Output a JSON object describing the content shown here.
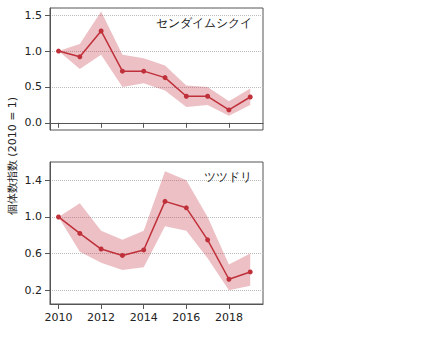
{
  "ylabel": "個体数指数 (2010 = 1)",
  "chart_data": [
    {
      "type": "line",
      "title": "センダイムシクイ",
      "x": [
        2010,
        2011,
        2012,
        2013,
        2014,
        2015,
        2016,
        2017,
        2018,
        2019
      ],
      "series": [
        {
          "color": "#c0303a",
          "marker": "circle",
          "values": [
            1.0,
            0.92,
            1.28,
            0.72,
            0.72,
            0.63,
            0.37,
            0.37,
            0.18,
            0.36
          ],
          "lower": [
            1.0,
            0.75,
            0.95,
            0.5,
            0.55,
            0.45,
            0.22,
            0.25,
            0.1,
            0.25
          ],
          "upper": [
            1.0,
            1.1,
            1.55,
            0.95,
            0.9,
            0.8,
            0.52,
            0.5,
            0.3,
            0.48
          ]
        }
      ],
      "xlim": [
        2009.6,
        2019.6
      ],
      "xticks": [
        2010,
        2012,
        2014,
        2016,
        2018
      ],
      "ylim": [
        -0.1,
        1.6
      ],
      "yticks": [
        {
          "value": 0,
          "label": "0.0"
        },
        0.5,
        {
          "value": 1,
          "label": "1.0"
        },
        1.5
      ],
      "grid": true,
      "tick_labels": "y"
    },
    {
      "type": "line",
      "title": "ツツドリ",
      "x": [
        2010,
        2011,
        2012,
        2013,
        2014,
        2015,
        2016,
        2017,
        2018,
        2019
      ],
      "series": [
        {
          "color": "#c0303a",
          "marker": "circle",
          "values": [
            1.0,
            0.82,
            0.65,
            0.58,
            0.64,
            1.17,
            1.1,
            0.75,
            0.32,
            0.4
          ],
          "lower": [
            1.0,
            0.62,
            0.5,
            0.42,
            0.45,
            0.9,
            0.85,
            0.55,
            0.2,
            0.25
          ],
          "upper": [
            1.0,
            1.15,
            0.85,
            0.75,
            0.85,
            1.5,
            1.4,
            1.0,
            0.48,
            0.6
          ]
        }
      ],
      "xlim": [
        2009.6,
        2019.6
      ],
      "xticks": [
        2010,
        2012,
        2014,
        2016,
        2018
      ],
      "ylim": [
        0.05,
        1.6
      ],
      "yticks": [
        0.2,
        0.6,
        {
          "value": 1,
          "label": "1.0"
        },
        1.4
      ],
      "grid": true,
      "tick_labels": true
    }
  ]
}
